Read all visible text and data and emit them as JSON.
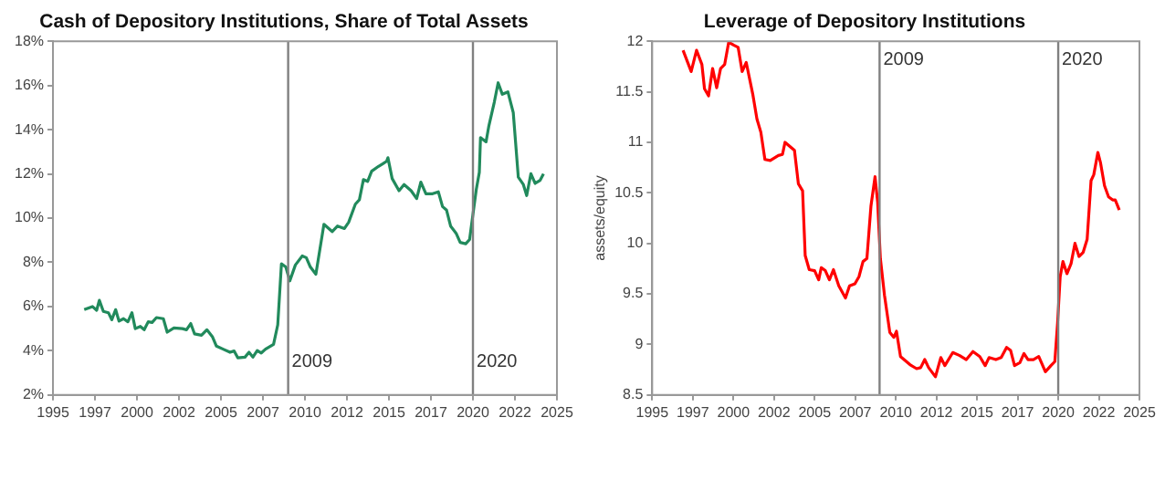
{
  "chart_data": [
    {
      "type": "line",
      "title": "Cash of Depository Institutions, Share of Total Assets",
      "series": [
        {
          "color": "#218a5c",
          "x": [
            1996.86,
            1997.35,
            1997.6,
            1997.76,
            1998.0,
            1998.3,
            1998.5,
            1998.73,
            1998.93,
            1999.2,
            1999.46,
            1999.7,
            1999.9,
            2000.2,
            2000.43,
            2000.67,
            2000.9,
            2001.16,
            2001.57,
            2001.8,
            2002.2,
            2002.7,
            2002.95,
            2003.2,
            2003.43,
            2003.84,
            2004.16,
            2004.5,
            2004.73,
            2005.13,
            2005.54,
            2005.78,
            2006.0,
            2006.43,
            2006.67,
            2006.9,
            2007.16,
            2007.4,
            2007.65,
            2008.13,
            2008.38,
            2008.6,
            2008.86,
            2009.1,
            2009.43,
            2009.84,
            2010.08,
            2010.32,
            2010.65,
            2011.13,
            2011.62,
            2011.94,
            2012.35,
            2012.6,
            2013.0,
            2013.24,
            2013.48,
            2013.73,
            2013.97,
            2014.38,
            2014.62,
            2014.86,
            2014.94,
            2015.19,
            2015.6,
            2015.9,
            2016.32,
            2016.65,
            2016.9,
            2017.2,
            2017.6,
            2017.94,
            2018.19,
            2018.43,
            2018.67,
            2019.0,
            2019.24,
            2019.57,
            2019.8,
            2020.2,
            2020.38,
            2020.45,
            2020.78,
            2020.94,
            2021.27,
            2021.5,
            2021.75,
            2022.08,
            2022.4,
            2022.7,
            2023.0,
            2023.2,
            2023.45,
            2023.7,
            2024.0,
            2024.2
          ],
          "values": [
            5.86,
            6.0,
            5.83,
            6.28,
            5.78,
            5.72,
            5.4,
            5.86,
            5.34,
            5.45,
            5.31,
            5.72,
            5.0,
            5.1,
            4.95,
            5.31,
            5.28,
            5.5,
            5.45,
            4.84,
            5.03,
            5.0,
            4.95,
            5.23,
            4.76,
            4.7,
            4.95,
            4.62,
            4.21,
            4.07,
            3.93,
            3.99,
            3.68,
            3.71,
            3.93,
            3.71,
            4.01,
            3.9,
            4.07,
            4.29,
            5.17,
            7.93,
            7.79,
            7.16,
            7.88,
            8.29,
            8.21,
            7.79,
            7.46,
            9.72,
            9.39,
            9.64,
            9.53,
            9.81,
            10.63,
            10.83,
            11.74,
            11.66,
            12.12,
            12.34,
            12.45,
            12.57,
            12.73,
            11.79,
            11.24,
            11.52,
            11.24,
            10.88,
            11.63,
            11.1,
            11.1,
            11.19,
            10.52,
            10.36,
            9.64,
            9.31,
            8.9,
            8.84,
            9.03,
            11.3,
            12.07,
            13.64,
            13.45,
            14.14,
            15.24,
            16.12,
            15.6,
            15.71,
            14.77,
            11.85,
            11.52,
            11.02,
            12.01,
            11.57,
            11.71,
            12.0
          ]
        }
      ],
      "xlim": [
        1995,
        2025
      ],
      "xticks": [
        1995,
        {
          "value": 1997.5,
          "label": "1997"
        },
        2000,
        {
          "value": 2002.5,
          "label": "2002"
        },
        2005,
        {
          "value": 2007.5,
          "label": "2007"
        },
        2010,
        {
          "value": 2012.5,
          "label": "2012"
        },
        2015,
        {
          "value": 2017.5,
          "label": "2017"
        },
        2020,
        {
          "value": 2022.5,
          "label": "2022"
        },
        2025
      ],
      "ylim": [
        2,
        18
      ],
      "yticks": [
        {
          "value": 2,
          "label": "2%"
        },
        {
          "value": 4,
          "label": "4%"
        },
        {
          "value": 6,
          "label": "6%"
        },
        {
          "value": 8,
          "label": "8%"
        },
        {
          "value": 10,
          "label": "10%"
        },
        {
          "value": 12,
          "label": "12%"
        },
        {
          "value": 14,
          "label": "14%"
        },
        {
          "value": 16,
          "label": "16%"
        },
        {
          "value": 18,
          "label": "18%"
        }
      ],
      "ref_lines": [
        {
          "axis": "x",
          "value": 2009,
          "label": "2009",
          "color": "#808080"
        },
        {
          "axis": "x",
          "value": 2020,
          "label": "2020",
          "color": "#808080"
        }
      ],
      "grid": false,
      "legend": false
    },
    {
      "type": "line",
      "title": "Leverage of Depository Institutions",
      "ylabel": "assets/equity",
      "series": [
        {
          "color": "#ff0000",
          "x": [
            1996.9,
            1997.4,
            1997.73,
            1998.06,
            1998.22,
            1998.47,
            1998.72,
            1998.97,
            1999.21,
            1999.46,
            1999.71,
            2000.04,
            2000.29,
            2000.54,
            2000.79,
            2001.2,
            2001.45,
            2001.69,
            2001.94,
            2002.27,
            2002.77,
            2003.02,
            2003.18,
            2003.76,
            2004.0,
            2004.26,
            2004.42,
            2004.67,
            2005.0,
            2005.25,
            2005.41,
            2005.66,
            2005.91,
            2006.16,
            2006.49,
            2006.9,
            2007.15,
            2007.48,
            2007.73,
            2007.98,
            2008.22,
            2008.47,
            2008.72,
            2008.88,
            2009.05,
            2009.3,
            2009.63,
            2009.88,
            2010.04,
            2010.29,
            2010.87,
            2011.28,
            2011.53,
            2011.78,
            2012.02,
            2012.44,
            2012.77,
            2013.02,
            2013.51,
            2013.93,
            2014.34,
            2014.75,
            2015.17,
            2015.5,
            2015.74,
            2016.16,
            2016.49,
            2016.82,
            2017.07,
            2017.31,
            2017.64,
            2017.89,
            2018.14,
            2018.47,
            2018.8,
            2019.21,
            2019.55,
            2019.79,
            2019.96,
            2020.12,
            2020.29,
            2020.54,
            2020.79,
            2021.03,
            2021.28,
            2021.53,
            2021.78,
            2022.02,
            2022.19,
            2022.44,
            2022.6,
            2022.85,
            2023.1,
            2023.35,
            2023.51,
            2023.76
          ],
          "values": [
            11.91,
            11.7,
            11.91,
            11.77,
            11.53,
            11.46,
            11.73,
            11.54,
            11.73,
            11.77,
            11.99,
            11.96,
            11.94,
            11.7,
            11.79,
            11.47,
            11.23,
            11.1,
            10.83,
            10.82,
            10.87,
            10.88,
            11.0,
            10.92,
            10.59,
            10.52,
            9.88,
            9.74,
            9.73,
            9.64,
            9.76,
            9.73,
            9.64,
            9.74,
            9.58,
            9.46,
            9.58,
            9.6,
            9.67,
            9.82,
            9.85,
            10.37,
            10.66,
            10.41,
            9.85,
            9.49,
            9.12,
            9.07,
            9.13,
            8.88,
            8.8,
            8.76,
            8.77,
            8.85,
            8.77,
            8.68,
            8.87,
            8.79,
            8.92,
            8.89,
            8.85,
            8.93,
            8.88,
            8.79,
            8.87,
            8.85,
            8.87,
            8.97,
            8.94,
            8.79,
            8.82,
            8.91,
            8.85,
            8.85,
            8.88,
            8.73,
            8.79,
            8.83,
            9.21,
            9.67,
            9.82,
            9.7,
            9.8,
            10.0,
            9.87,
            9.91,
            10.04,
            10.62,
            10.68,
            10.9,
            10.8,
            10.57,
            10.46,
            10.43,
            10.43,
            10.33
          ]
        }
      ],
      "xlim": [
        1995,
        2025
      ],
      "xticks": [
        1995,
        {
          "value": 1997.5,
          "label": "1997"
        },
        2000,
        {
          "value": 2002.5,
          "label": "2002"
        },
        2005,
        {
          "value": 2007.5,
          "label": "2007"
        },
        2010,
        {
          "value": 2012.5,
          "label": "2012"
        },
        2015,
        {
          "value": 2017.5,
          "label": "2017"
        },
        2020,
        {
          "value": 2022.5,
          "label": "2022"
        },
        2025
      ],
      "ylim": [
        8.5,
        12
      ],
      "yticks": [
        8.5,
        9,
        9.5,
        10,
        10.5,
        11,
        11.5,
        12
      ],
      "ref_lines": [
        {
          "axis": "x",
          "value": 2009,
          "label": "2009",
          "color": "#808080"
        },
        {
          "axis": "x",
          "value": 2020,
          "label": "2020",
          "color": "#808080"
        }
      ],
      "grid": false,
      "legend": false
    }
  ]
}
